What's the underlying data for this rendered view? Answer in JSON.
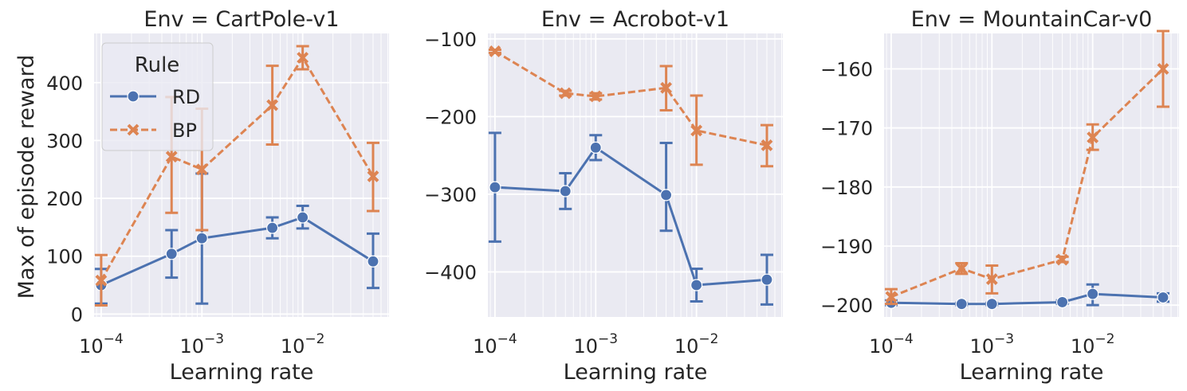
{
  "figure": {
    "shared_ylabel": "Max of episode reward",
    "legend": {
      "title": "Rule",
      "entries": [
        {
          "name": "RD",
          "color": "#4c72b0",
          "marker": "circle",
          "dash": "solid"
        },
        {
          "name": "BP",
          "color": "#dd8452",
          "marker": "x",
          "dash": "dashed"
        }
      ],
      "location": "upper-left of first panel"
    }
  },
  "chart_data": [
    {
      "type": "line",
      "title": "Env = CartPole-v1",
      "xlabel": "Learning rate",
      "ylabel": "Max of episode reward",
      "xscale": "log",
      "xlim": [
        8.5e-05,
        0.072
      ],
      "ylim": [
        -5,
        485
      ],
      "x_ticks": [
        {
          "exp": "-4",
          "value": 0.0001
        },
        {
          "exp": "-3",
          "value": 0.001
        },
        {
          "exp": "-2",
          "value": 0.01
        }
      ],
      "y_ticks": [
        0,
        100,
        200,
        300,
        400
      ],
      "grid": true,
      "x": [
        0.0001,
        0.0005,
        0.001,
        0.005,
        0.01,
        0.05
      ],
      "series": [
        {
          "name": "RD",
          "color": "#4c72b0",
          "values": [
            50,
            104,
            131,
            149,
            167,
            91
          ],
          "err_low": [
            18,
            63,
            18,
            131,
            148,
            45
          ],
          "err_high": [
            78,
            145,
            243,
            167,
            187,
            139
          ]
        },
        {
          "name": "BP",
          "color": "#dd8452",
          "values": [
            58,
            272,
            250,
            361,
            443,
            238
          ],
          "err_low": [
            15,
            175,
            145,
            293,
            423,
            178
          ],
          "err_high": [
            102,
            375,
            355,
            429,
            463,
            296
          ]
        }
      ]
    },
    {
      "type": "line",
      "title": "Env = Acrobot-v1",
      "xlabel": "Learning rate",
      "xscale": "log",
      "xlim": [
        8.5e-05,
        0.072
      ],
      "ylim": [
        -458,
        -93
      ],
      "x_ticks": [
        {
          "exp": "-4",
          "value": 0.0001
        },
        {
          "exp": "-3",
          "value": 0.001
        },
        {
          "exp": "-2",
          "value": 0.01
        }
      ],
      "y_ticks": [
        -100,
        -200,
        -300,
        -400
      ],
      "grid": true,
      "x": [
        0.0001,
        0.0005,
        0.001,
        0.005,
        0.01,
        0.05
      ],
      "series": [
        {
          "name": "RD",
          "color": "#4c72b0",
          "values": [
            -291,
            -296,
            -240,
            -301,
            -417,
            -410
          ],
          "err_low": [
            -361,
            -319,
            -256,
            -347,
            -438,
            -442
          ],
          "err_high": [
            -221,
            -273,
            -224,
            -234,
            -396,
            -378
          ]
        },
        {
          "name": "BP",
          "color": "#dd8452",
          "values": [
            -116,
            -170,
            -174,
            -163,
            -218,
            -237
          ],
          "err_low": [
            -118,
            -173,
            -178,
            -192,
            -262,
            -264
          ],
          "err_high": [
            -114,
            -167,
            -170,
            -135,
            -173,
            -211
          ]
        }
      ]
    },
    {
      "type": "line",
      "title": "Env = MountainCar-v0",
      "xlabel": "Learning rate",
      "xscale": "log",
      "xlim": [
        8.5e-05,
        0.072
      ],
      "ylim": [
        -202,
        -154
      ],
      "x_ticks": [
        {
          "exp": "-4",
          "value": 0.0001
        },
        {
          "exp": "-3",
          "value": 0.001
        },
        {
          "exp": "-2",
          "value": 0.01
        }
      ],
      "y_ticks": [
        -160,
        -170,
        -180,
        -190,
        -200
      ],
      "grid": true,
      "x": [
        0.0001,
        0.0005,
        0.001,
        0.005,
        0.01,
        0.05
      ],
      "series": [
        {
          "name": "RD",
          "color": "#4c72b0",
          "values": [
            -199.6,
            -199.8,
            -199.8,
            -199.5,
            -198.1,
            -198.7
          ],
          "err_low": [
            -200,
            -200,
            -200,
            -199.8,
            -200,
            -199.4
          ],
          "err_high": [
            -199.2,
            -199.6,
            -199.6,
            -199.2,
            -196.5,
            -198.0
          ]
        },
        {
          "name": "BP",
          "color": "#dd8452",
          "values": [
            -198.6,
            -193.8,
            -195.6,
            -192.3,
            -171.6,
            -160.0
          ],
          "err_low": [
            -199.8,
            -194.7,
            -198.0,
            -192.7,
            -173.7,
            -166.4
          ],
          "err_high": [
            -197.3,
            -192.9,
            -193.3,
            -191.8,
            -169.4,
            -153.6
          ]
        }
      ]
    }
  ]
}
